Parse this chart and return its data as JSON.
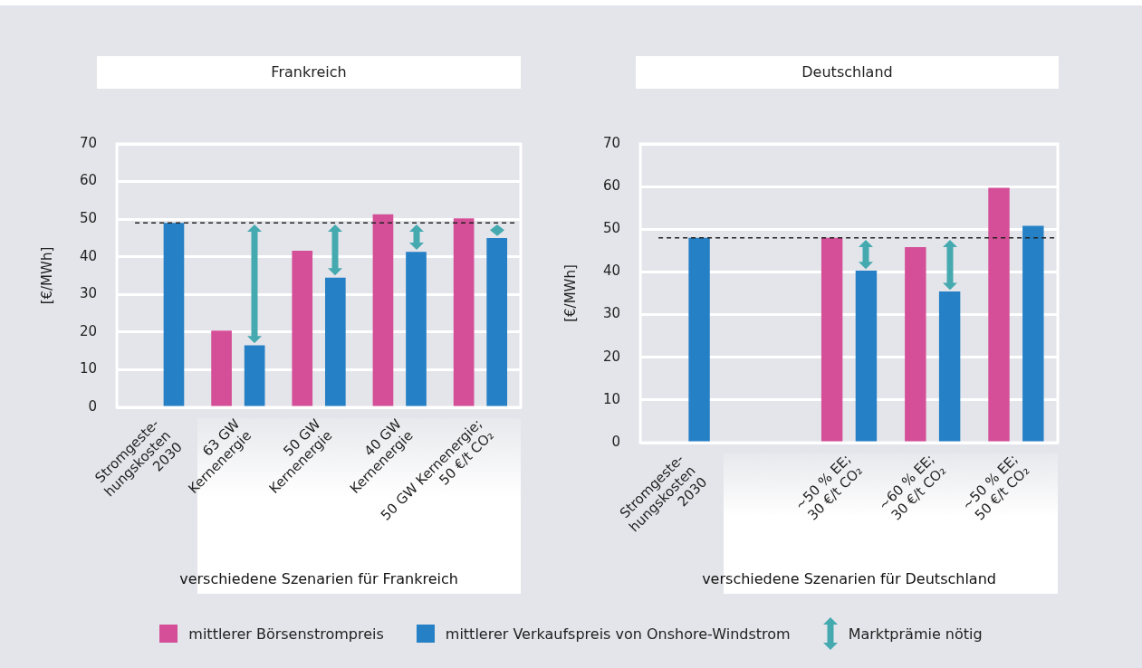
{
  "chart_data": [
    {
      "type": "bar",
      "title": "Frankreich",
      "xlabel": "verschiedene Szenarien für Frankreich",
      "ylabel": "[€/MWh]",
      "categories": [
        "Stromgeste-\nhungskosten\n2030",
        "63 GW\nKernenergie",
        "50 GW\nKernenergie",
        "40 GW\nKernenergie",
        "50 GW Kernenergie;\n50 €/t CO₂"
      ],
      "series": [
        {
          "name": "mittlerer Börsenstrompreis",
          "color": "#d44f97",
          "values": [
            null,
            20.4,
            41.6,
            51.3,
            50.2
          ]
        },
        {
          "name": "mittlerer Verkaufspreis von Onshore-Windstrom",
          "color": "#2580c6",
          "values": [
            49,
            16.5,
            34.5,
            41.3,
            45
          ]
        }
      ],
      "ylim": [
        0,
        70
      ],
      "yticks": [
        0,
        10,
        20,
        30,
        40,
        50,
        60,
        70
      ],
      "grid": "y",
      "ref_lines": [
        {
          "axis": "y",
          "value": 49,
          "color": "#222222",
          "line_style": "dashed"
        }
      ],
      "legend": "bottom",
      "annotations": [
        "Marktprämie nötig"
      ]
    },
    {
      "type": "bar",
      "title": "Deutschland",
      "xlabel": "verschiedene Szenarien für Deutschland",
      "ylabel": "[€/MWh]",
      "categories": [
        "Stromgeste-\nhungskosten\n2030",
        null,
        "~50 % EE;\n30 €/t CO₂",
        "~60 % EE;\n30 €/t CO₂",
        "~50 % EE;\n50 €/t CO₂"
      ],
      "series": [
        {
          "color": "#d44f97",
          "values": [
            null,
            null,
            48,
            45.8,
            59.7
          ]
        },
        {
          "color": "#2580c6",
          "values": [
            48,
            null,
            40.3,
            35.4,
            50.8
          ]
        }
      ],
      "ylim": [
        0,
        70
      ],
      "yticks": [
        0,
        10,
        20,
        30,
        40,
        50,
        60,
        70
      ],
      "grid": "y",
      "ref_lines": [
        {
          "axis": "y",
          "value": 48,
          "color": "#222222",
          "line_style": "dashed"
        }
      ]
    }
  ]
}
